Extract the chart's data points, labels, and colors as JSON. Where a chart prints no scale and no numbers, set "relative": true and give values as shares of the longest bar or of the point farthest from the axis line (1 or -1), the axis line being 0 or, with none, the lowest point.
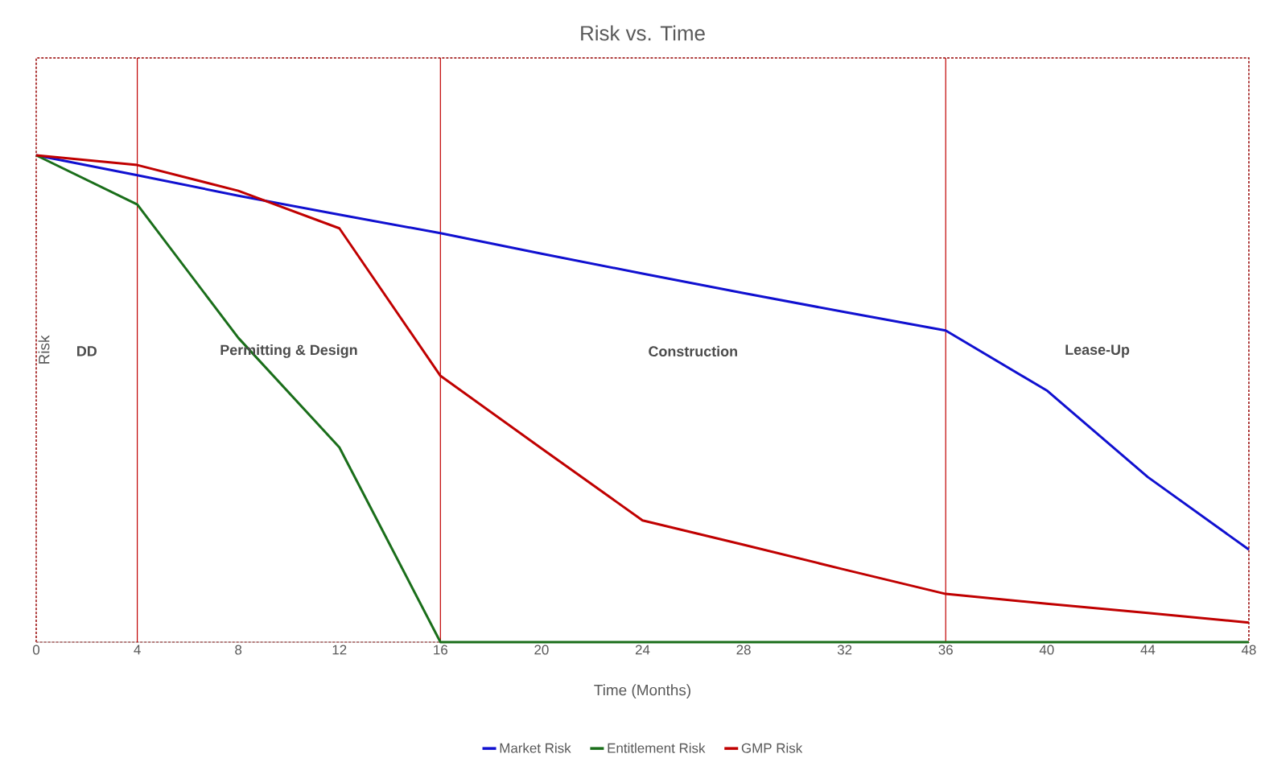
{
  "chart_data": {
    "type": "line",
    "title": "Risk vs. Time",
    "xlabel": "Time (Months)",
    "ylabel": "Risk",
    "relative": true,
    "x": [
      0,
      4,
      8,
      12,
      16,
      20,
      24,
      28,
      32,
      36,
      40,
      44,
      48
    ],
    "xlim": [
      0,
      48
    ],
    "xticks": [
      0,
      4,
      8,
      12,
      16,
      20,
      24,
      28,
      32,
      36,
      40,
      44,
      48
    ],
    "series": [
      {
        "name": "Market Risk",
        "color": "#1010d0",
        "values": [
          1,
          0.959,
          0.917,
          0.878,
          0.84,
          0.798,
          0.757,
          0.717,
          0.678,
          0.64,
          0.517,
          0.339,
          0.19
        ]
      },
      {
        "name": "Entitlement Risk",
        "color": "#1a6e1a",
        "values": [
          1,
          0.899,
          0.625,
          0.4,
          0,
          0,
          0,
          0,
          0,
          0,
          0,
          0,
          0
        ]
      },
      {
        "name": "GMP Risk",
        "color": "#c00000",
        "values": [
          1,
          0.98,
          0.927,
          0.85,
          0.547,
          0.398,
          0.25,
          0.2,
          0.149,
          0.099,
          0.079,
          0.06,
          0.04
        ]
      }
    ],
    "ref_lines": [
      {
        "axis": "x",
        "value": 4,
        "color": "#c00000"
      },
      {
        "axis": "x",
        "value": 16,
        "color": "#c00000"
      },
      {
        "axis": "x",
        "value": 36,
        "color": "#c00000"
      }
    ],
    "annotations": [
      "DD",
      "Permitting & Design",
      "Construction",
      "Lease-Up"
    ],
    "legend": "bottom",
    "grid": false,
    "marker": "none",
    "line_style": "solid"
  }
}
